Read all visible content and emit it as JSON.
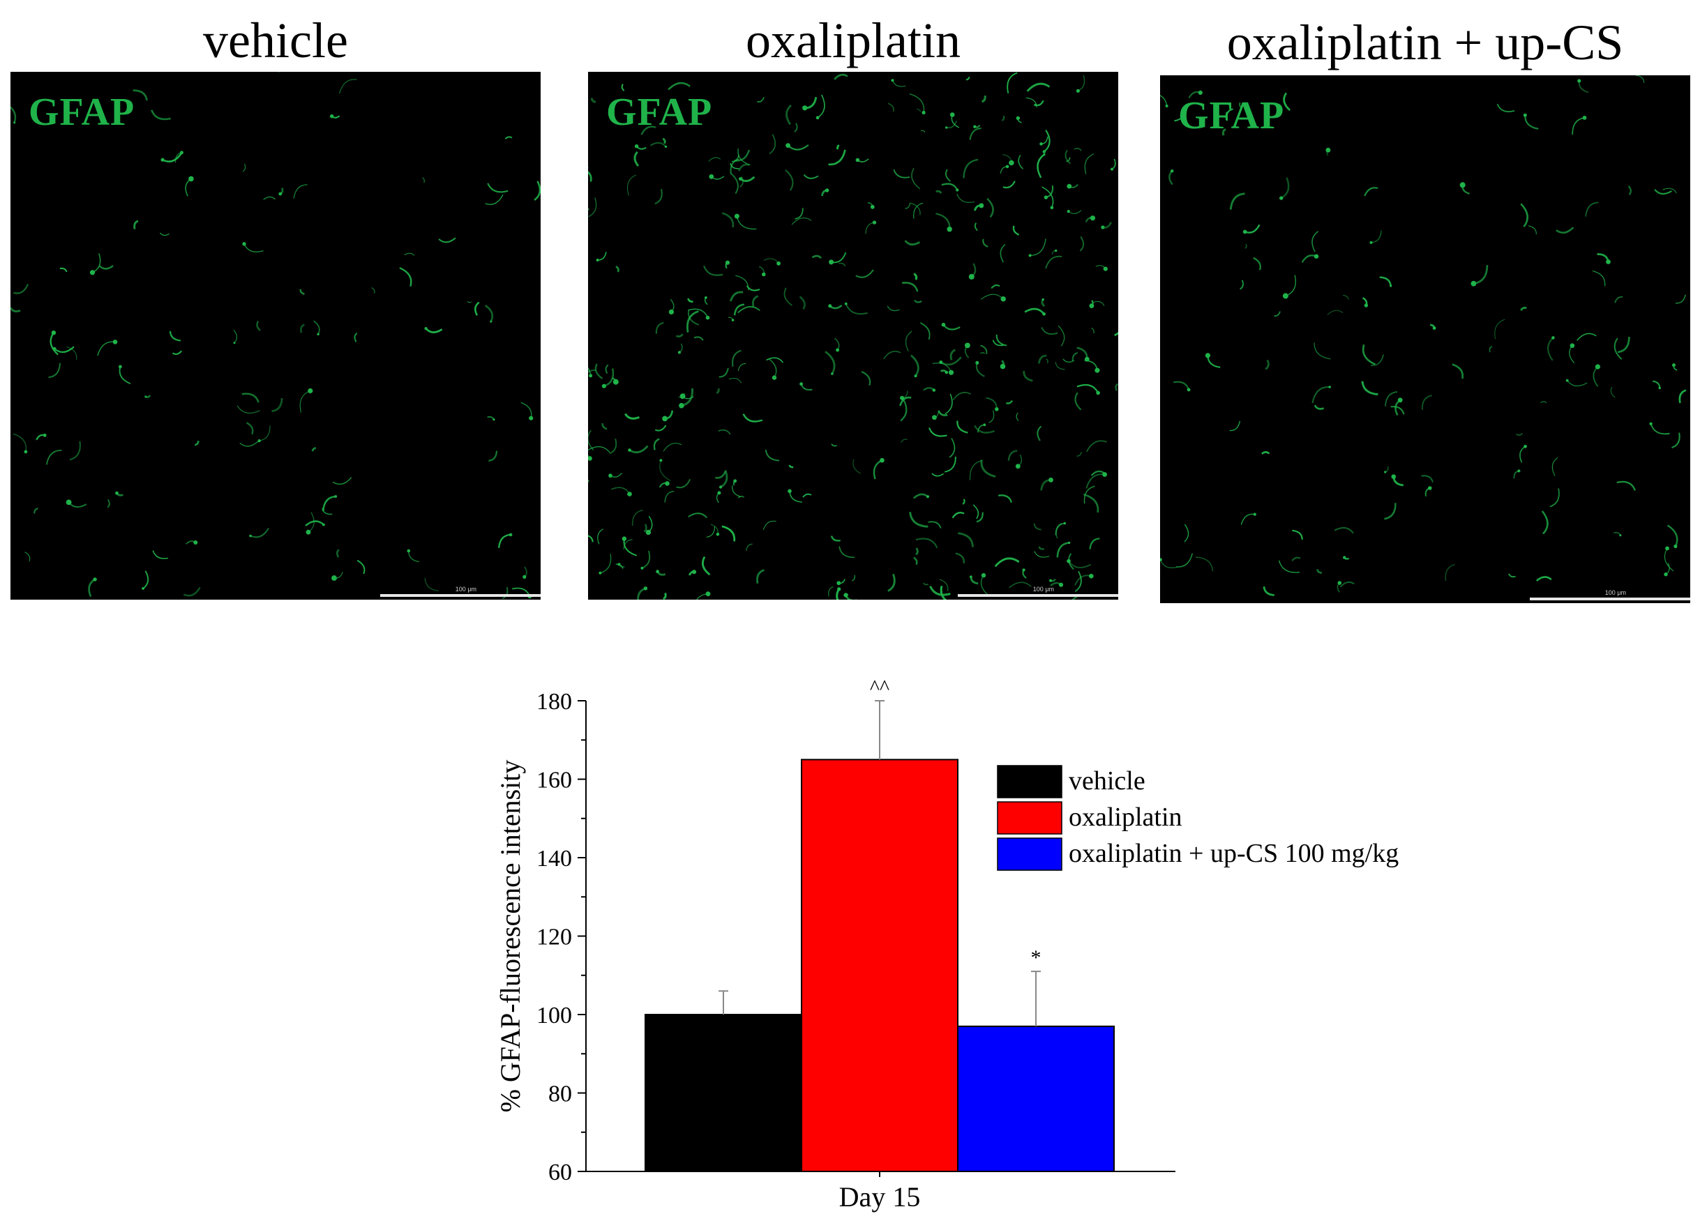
{
  "panels": [
    {
      "title": "vehicle",
      "stain": "GFAP",
      "scale": "100 μm"
    },
    {
      "title": "oxaliplatin",
      "stain": "GFAP",
      "scale": "100 μm"
    },
    {
      "title": "oxaliplatin + up-CS",
      "stain": "GFAP",
      "scale": "100 μm"
    }
  ],
  "colors": {
    "stain": "#1fb34a",
    "vehicle": "#000000",
    "oxaliplatin": "#ff0000",
    "upcs": "#0000ff"
  },
  "chart_data": {
    "type": "bar",
    "categories": [
      "Day 15"
    ],
    "series": [
      {
        "name": "vehicle",
        "values": [
          100
        ],
        "error": [
          6
        ],
        "color": "#000000",
        "annotation": ""
      },
      {
        "name": "oxaliplatin",
        "values": [
          165
        ],
        "error": [
          15
        ],
        "color": "#ff0000",
        "annotation": "^^"
      },
      {
        "name": "oxaliplatin + up-CS 100 mg/kg",
        "values": [
          97
        ],
        "error": [
          14
        ],
        "color": "#0000ff",
        "annotation": "*"
      }
    ],
    "xlabel": "",
    "ylabel": "% GFAP-fluorescence intensity",
    "ylim": [
      60,
      180
    ],
    "yticks": [
      60,
      80,
      100,
      120,
      140,
      160,
      180
    ],
    "grid": false,
    "legend": "top-right"
  }
}
